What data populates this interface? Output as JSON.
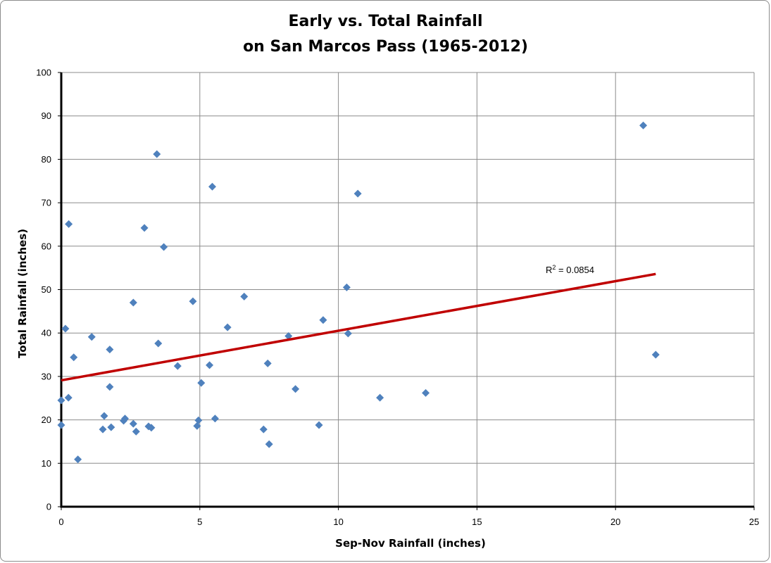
{
  "chart_data": {
    "type": "scatter",
    "title_line1": "Early vs. Total Rainfall",
    "title_line2": "on San Marcos Pass (1965-2012)",
    "xlabel": "Sep-Nov Rainfall (inches)",
    "ylabel": "Total Rainfall (inches)",
    "xlim": [
      0,
      25
    ],
    "ylim": [
      0,
      100
    ],
    "xticks": [
      0,
      5,
      10,
      15,
      20,
      25
    ],
    "yticks": [
      0,
      10,
      20,
      30,
      40,
      50,
      60,
      70,
      80,
      90,
      100
    ],
    "grid": true,
    "marker_color": "#4f81bd",
    "trendline_color": "#c00000",
    "trendline": {
      "x": [
        0,
        21.45
      ],
      "y": [
        29.1,
        53.6
      ],
      "r2_prefix": "R",
      "r2_sup": "2",
      "r2_value": " = 0.0854"
    },
    "points": [
      {
        "x": 0.27,
        "y": 65.1
      },
      {
        "x": 0.15,
        "y": 41.0
      },
      {
        "x": 0.0,
        "y": 24.5
      },
      {
        "x": 0.0,
        "y": 18.8
      },
      {
        "x": 0.26,
        "y": 25.1
      },
      {
        "x": 0.45,
        "y": 34.4
      },
      {
        "x": 0.6,
        "y": 10.9
      },
      {
        "x": 1.1,
        "y": 39.1
      },
      {
        "x": 1.5,
        "y": 17.8
      },
      {
        "x": 1.55,
        "y": 20.9
      },
      {
        "x": 1.75,
        "y": 36.2
      },
      {
        "x": 1.75,
        "y": 27.6
      },
      {
        "x": 1.8,
        "y": 18.3
      },
      {
        "x": 2.25,
        "y": 19.8
      },
      {
        "x": 2.3,
        "y": 20.3
      },
      {
        "x": 2.6,
        "y": 47.0
      },
      {
        "x": 2.6,
        "y": 19.1
      },
      {
        "x": 2.7,
        "y": 17.3
      },
      {
        "x": 3.0,
        "y": 64.2
      },
      {
        "x": 3.15,
        "y": 18.5
      },
      {
        "x": 3.25,
        "y": 18.2
      },
      {
        "x": 3.45,
        "y": 81.2
      },
      {
        "x": 3.5,
        "y": 37.6
      },
      {
        "x": 3.7,
        "y": 59.8
      },
      {
        "x": 4.2,
        "y": 32.4
      },
      {
        "x": 4.75,
        "y": 47.3
      },
      {
        "x": 4.9,
        "y": 18.6
      },
      {
        "x": 4.95,
        "y": 19.9
      },
      {
        "x": 5.05,
        "y": 28.5
      },
      {
        "x": 5.35,
        "y": 32.6
      },
      {
        "x": 5.45,
        "y": 73.7
      },
      {
        "x": 5.55,
        "y": 20.3
      },
      {
        "x": 6.0,
        "y": 41.3
      },
      {
        "x": 6.6,
        "y": 48.4
      },
      {
        "x": 7.3,
        "y": 17.8
      },
      {
        "x": 7.45,
        "y": 33.0
      },
      {
        "x": 7.5,
        "y": 14.4
      },
      {
        "x": 8.2,
        "y": 39.3
      },
      {
        "x": 8.45,
        "y": 27.1
      },
      {
        "x": 9.3,
        "y": 18.8
      },
      {
        "x": 9.45,
        "y": 43.0
      },
      {
        "x": 10.3,
        "y": 50.5
      },
      {
        "x": 10.35,
        "y": 39.9
      },
      {
        "x": 10.7,
        "y": 72.1
      },
      {
        "x": 11.5,
        "y": 25.1
      },
      {
        "x": 13.15,
        "y": 26.2
      },
      {
        "x": 21.0,
        "y": 87.8
      },
      {
        "x": 21.45,
        "y": 35.0
      }
    ]
  }
}
